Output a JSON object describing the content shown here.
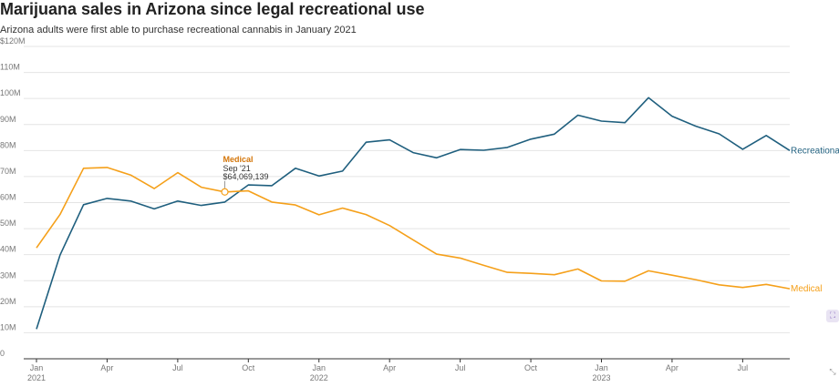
{
  "header": {
    "title": "Marijuana sales in Arizona since legal recreational use",
    "subtitle": "Arizona adults were first able to purchase recreational cannabis in January 2021"
  },
  "colors": {
    "recreational": "#1f5f7e",
    "medical": "#f5a01a",
    "grid": "#e4e4e4",
    "axis": "#333333"
  },
  "chart_data": {
    "type": "line",
    "title": "Marijuana sales in Arizona since legal recreational use",
    "subtitle": "Arizona adults were first able to purchase recreational cannabis in January 2021",
    "xlabel": "",
    "ylabel": "",
    "ylim": [
      0,
      120
    ],
    "yticks": [
      {
        "value": 0,
        "label": "0"
      },
      {
        "value": 10,
        "label": "10M"
      },
      {
        "value": 20,
        "label": "20M"
      },
      {
        "value": 30,
        "label": "30M"
      },
      {
        "value": 40,
        "label": "40M"
      },
      {
        "value": 50,
        "label": "50M"
      },
      {
        "value": 60,
        "label": "60M"
      },
      {
        "value": 70,
        "label": "70M"
      },
      {
        "value": 80,
        "label": "80M"
      },
      {
        "value": 90,
        "label": "90M"
      },
      {
        "value": 100,
        "label": "100M"
      },
      {
        "value": 110,
        "label": "110M"
      },
      {
        "value": 120,
        "label": "$120M"
      }
    ],
    "xticks": [
      {
        "x": "2021-01",
        "label": "Jan",
        "sublabel": "2021"
      },
      {
        "x": "2021-04",
        "label": "Apr",
        "sublabel": ""
      },
      {
        "x": "2021-07",
        "label": "Jul",
        "sublabel": ""
      },
      {
        "x": "2021-10",
        "label": "Oct",
        "sublabel": ""
      },
      {
        "x": "2022-01",
        "label": "Jan",
        "sublabel": "2022"
      },
      {
        "x": "2022-04",
        "label": "Apr",
        "sublabel": ""
      },
      {
        "x": "2022-07",
        "label": "Jul",
        "sublabel": ""
      },
      {
        "x": "2022-10",
        "label": "Oct",
        "sublabel": ""
      },
      {
        "x": "2023-01",
        "label": "Jan",
        "sublabel": "2023"
      },
      {
        "x": "2023-04",
        "label": "Apr",
        "sublabel": ""
      },
      {
        "x": "2023-07",
        "label": "Jul",
        "sublabel": ""
      }
    ],
    "x": [
      "2021-01",
      "2021-02",
      "2021-03",
      "2021-04",
      "2021-05",
      "2021-06",
      "2021-07",
      "2021-08",
      "2021-09",
      "2021-10",
      "2021-11",
      "2021-12",
      "2022-01",
      "2022-02",
      "2022-03",
      "2022-04",
      "2022-05",
      "2022-06",
      "2022-07",
      "2022-08",
      "2022-09",
      "2022-10",
      "2022-11",
      "2022-12",
      "2023-01",
      "2023-02",
      "2023-03",
      "2023-04",
      "2023-05",
      "2023-06",
      "2023-07",
      "2023-08",
      "2023-09"
    ],
    "series": [
      {
        "name": "Recreational",
        "color": "#1f5f7e",
        "values": [
          11.4,
          39.8,
          59.2,
          61.6,
          60.6,
          57.6,
          60.6,
          58.9,
          60.2,
          66.8,
          66.5,
          73.2,
          70.2,
          72.1,
          83.2,
          84.1,
          79.2,
          77.2,
          80.4,
          80.1,
          81.2,
          84.4,
          86.3,
          93.6,
          91.3,
          90.7,
          100.3,
          93.2,
          89.4,
          86.4,
          80.5,
          85.8,
          80.0
        ]
      },
      {
        "name": "Medical",
        "color": "#f5a01a",
        "values": [
          42.6,
          55.4,
          73.2,
          73.5,
          70.6,
          65.4,
          71.5,
          65.9,
          64.1,
          64.5,
          60.2,
          59.1,
          55.3,
          57.9,
          55.4,
          51.2,
          45.7,
          40.2,
          38.7,
          35.9,
          33.2,
          32.8,
          32.3,
          34.5,
          29.9,
          29.8,
          33.8,
          32.1,
          30.4,
          28.4,
          27.4,
          28.6,
          26.9
        ]
      }
    ],
    "tooltip": {
      "series": "Medical",
      "x": "2021-09",
      "title": "Medical",
      "date": "Sep '21",
      "value": "$64,069,139"
    }
  }
}
